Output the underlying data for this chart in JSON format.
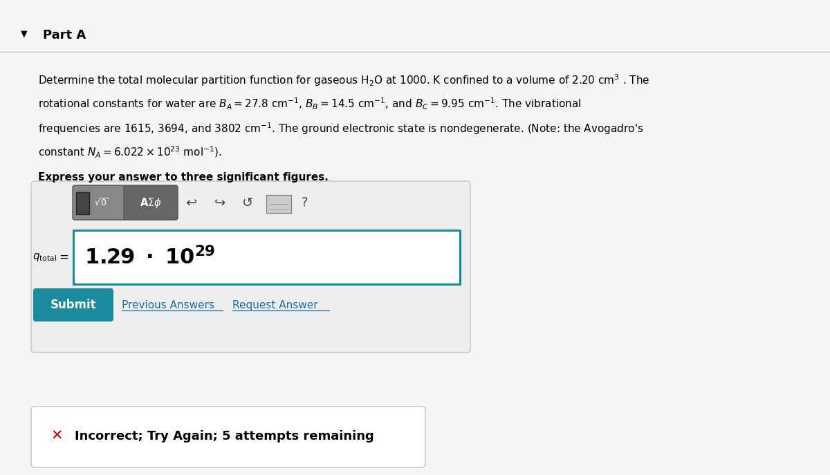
{
  "bg_color": "#f5f5f5",
  "white": "#ffffff",
  "part_a_text": "Part A",
  "express_text": "Express your answer to three significant figures.",
  "submit_text": "Submit",
  "prev_ans_text": "Previous Answers",
  "req_ans_text": "Request Answer",
  "incorrect_text": "Incorrect; Try Again; 5 attempts remaining",
  "submit_color": "#1a8a9e",
  "link_color": "#1a6faf",
  "incorrect_color": "#cc0000",
  "border_color": "#cccccc",
  "answer_border_color": "#1a8a9e",
  "toolbar_bg": "#888888",
  "toolbar_bg2": "#666666"
}
